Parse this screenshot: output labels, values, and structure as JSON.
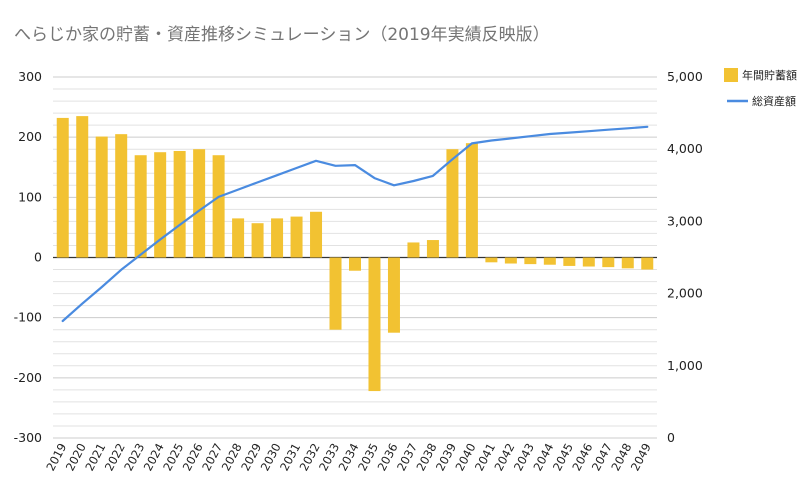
{
  "chart_data": {
    "type": "bar+line",
    "title": "へらじか家の貯蓄・資産推移シミュレーション（2019年実績反映版）",
    "categories": [
      "2019",
      "2020",
      "2021",
      "2022",
      "2023",
      "2024",
      "2025",
      "2026",
      "2027",
      "2028",
      "2029",
      "2030",
      "2031",
      "2032",
      "2033",
      "2034",
      "2035",
      "2036",
      "2037",
      "2038",
      "2039",
      "2040",
      "2041",
      "2042",
      "2043",
      "2044",
      "2045",
      "2046",
      "2047",
      "2048",
      "2049"
    ],
    "series": [
      {
        "name": "年間貯蓄額",
        "type": "bar",
        "axis": "left",
        "color": "#F2C232",
        "values": [
          232,
          235,
          201,
          205,
          170,
          175,
          177,
          180,
          170,
          65,
          57,
          65,
          68,
          76,
          -120,
          -22,
          -222,
          -125,
          25,
          29,
          180,
          190,
          -8,
          -10,
          -11,
          -12,
          -14,
          -15,
          -16,
          -18,
          -20
        ]
      },
      {
        "name": "総資産額",
        "type": "line",
        "axis": "right",
        "color": "#4A8BE0",
        "values": [
          1620,
          1860,
          2090,
          2330,
          2540,
          2750,
          2950,
          3150,
          3340,
          3440,
          3540,
          3640,
          3740,
          3840,
          3770,
          3780,
          3600,
          3500,
          3560,
          3630,
          3860,
          4080,
          4120,
          4150,
          4180,
          4210,
          4230,
          4250,
          4270,
          4290,
          4310
        ]
      }
    ],
    "y_left": {
      "min": -300,
      "max": 300,
      "ticks": [
        "300",
        "200",
        "100",
        "0",
        "-100",
        "-200",
        "-300"
      ]
    },
    "y_right": {
      "min": 0,
      "max": 5000,
      "ticks": [
        "5,000",
        "4,000",
        "3,000",
        "2,000",
        "1,000",
        "0"
      ]
    },
    "legend_position": "right",
    "grid": true
  }
}
